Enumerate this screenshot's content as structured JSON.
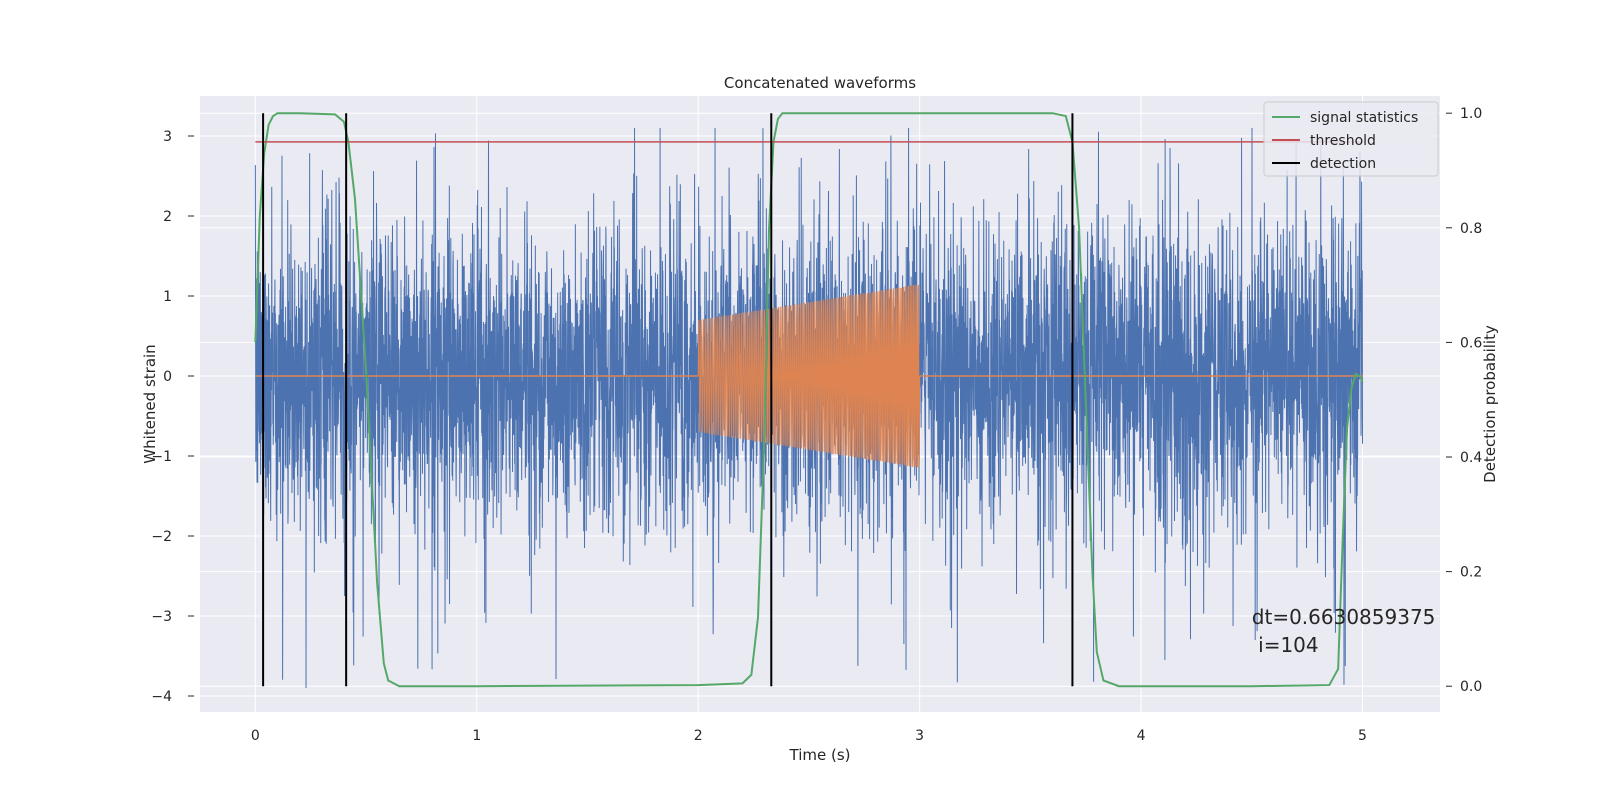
{
  "chart_data": {
    "type": "line",
    "title": "Concatenated waveforms",
    "xlabel": "Time (s)",
    "ylabel_left": "Whitened strain",
    "ylabel_right": "Detection probability",
    "xlim": [
      -0.25,
      5.35
    ],
    "ylim_left": [
      -4.2,
      3.5
    ],
    "ylim_right": [
      -0.045,
      1.03
    ],
    "xticks": [
      0,
      1,
      2,
      3,
      4,
      5
    ],
    "yticks_left": [
      -4,
      -3,
      -2,
      -1,
      0,
      1,
      2,
      3
    ],
    "yticks_right": [
      0.0,
      0.2,
      0.4,
      0.6,
      0.8,
      1.0
    ],
    "grid": true,
    "legend_position": "top-right",
    "colors": {
      "background": "#eaeaf2",
      "grid": "#ffffff",
      "noise": "#4c72b0",
      "waveform": "#dd8452",
      "signal_statistics": "#55a868",
      "threshold": "#c44e52",
      "detection": "#000000"
    },
    "series": [
      {
        "name": "signal statistics",
        "axis": "right",
        "x": [
          0.0,
          0.02,
          0.04,
          0.06,
          0.08,
          0.1,
          0.2,
          0.36,
          0.4,
          0.42,
          0.45,
          0.5,
          0.55,
          0.58,
          0.6,
          0.65,
          1.0,
          2.0,
          2.2,
          2.24,
          2.27,
          2.3,
          2.32,
          2.34,
          2.36,
          2.38,
          2.42,
          2.6,
          3.6,
          3.66,
          3.69,
          3.72,
          3.75,
          3.78,
          3.8,
          3.83,
          3.9,
          4.5,
          4.85,
          4.89,
          4.91,
          4.93,
          4.95,
          4.97,
          4.99,
          5.0
        ],
        "y": [
          0.6,
          0.82,
          0.93,
          0.98,
          0.995,
          1.0,
          1.0,
          0.998,
          0.985,
          0.95,
          0.85,
          0.55,
          0.18,
          0.04,
          0.01,
          0.0,
          0.0,
          0.002,
          0.005,
          0.02,
          0.12,
          0.45,
          0.8,
          0.95,
          0.99,
          1.0,
          1.0,
          1.0,
          1.0,
          0.995,
          0.95,
          0.8,
          0.5,
          0.2,
          0.06,
          0.01,
          0.0,
          0.0,
          0.002,
          0.03,
          0.25,
          0.45,
          0.52,
          0.545,
          0.54,
          0.53
        ]
      },
      {
        "name": "threshold",
        "axis": "right",
        "x": [
          0.0,
          5.0
        ],
        "y": [
          0.95,
          0.95
        ]
      },
      {
        "name": "detection",
        "axis": "right",
        "x": [
          0.035,
          0.41,
          2.33,
          3.69
        ],
        "y_range": [
          0.0,
          1.0
        ]
      },
      {
        "name": "",
        "role": "noise",
        "axis": "left",
        "x_range": [
          0.0,
          5.0
        ],
        "typical_amplitude": 1.0,
        "peak_range": [
          -3.9,
          3.1
        ]
      },
      {
        "name": "",
        "role": "waveform",
        "axis": "left",
        "x_range": [
          2.0,
          3.0
        ],
        "amplitude_range": [
          0.7,
          1.15
        ]
      }
    ],
    "annotations": [
      {
        "text": "dt=0.6630859375",
        "x": 4.5,
        "y": -3.1
      },
      {
        "text": " i=104",
        "x": 4.5,
        "y": -3.45
      }
    ]
  }
}
